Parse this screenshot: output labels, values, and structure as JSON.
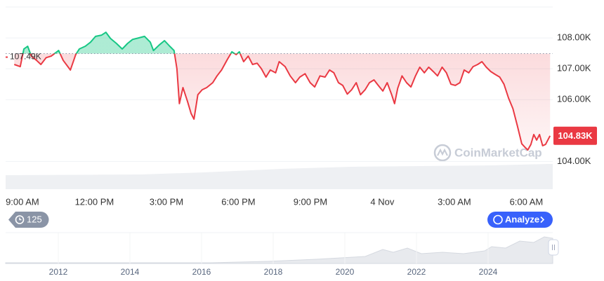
{
  "chart_data": {
    "type": "line",
    "x": [
      8.66,
      8.91,
      9.06,
      9.22,
      9.37,
      9.59,
      9.77,
      9.99,
      10.2,
      10.51,
      10.7,
      11.0,
      11.22,
      11.37,
      11.62,
      11.84,
      12.05,
      12.3,
      12.48,
      12.67,
      12.92,
      13.16,
      13.38,
      13.59,
      13.84,
      14.09,
      14.33,
      14.46,
      14.7,
      14.92,
      15.14,
      15.32,
      15.44,
      15.54,
      15.69,
      15.88,
      16.03,
      16.15,
      16.31,
      16.49,
      16.68,
      16.93,
      17.11,
      17.3,
      17.54,
      17.73,
      17.91,
      18.04,
      18.22,
      18.41,
      18.59,
      18.78,
      18.96,
      19.15,
      19.33,
      19.55,
      19.7,
      19.95,
      20.16,
      20.38,
      20.56,
      20.78,
      20.99,
      21.18,
      21.4,
      21.61,
      21.8,
      21.98,
      22.17,
      22.35,
      22.54,
      22.72,
      22.91,
      23.09,
      23.28,
      23.46,
      23.65,
      23.83,
      24.02,
      24.2,
      24.39,
      24.51,
      24.64,
      24.82,
      25.01,
      25.19,
      25.38,
      25.56,
      25.75,
      25.93,
      26.12,
      26.3,
      26.49,
      26.67,
      26.86,
      27.04,
      27.23,
      27.41,
      27.6,
      27.78,
      27.97,
      28.15,
      28.33,
      28.52,
      28.7,
      28.89,
      29.07,
      29.26,
      29.44,
      29.63,
      29.81,
      29.94,
      30.06,
      30.19,
      30.31,
      30.43,
      30.55,
      30.68,
      30.8,
      30.99
    ],
    "series": [
      {
        "up_color": "#16c784",
        "down_color": "#ea3943",
        "values": [
          107.14,
          107.07,
          107.64,
          107.73,
          107.41,
          107.27,
          107.14,
          107.36,
          107.41,
          107.59,
          107.27,
          106.96,
          107.46,
          107.64,
          107.73,
          107.86,
          108.05,
          108.09,
          108.18,
          107.98,
          107.82,
          107.64,
          107.82,
          107.95,
          108.0,
          108.05,
          107.86,
          107.59,
          107.77,
          107.91,
          107.73,
          107.59,
          107.0,
          105.87,
          106.39,
          105.94,
          105.55,
          105.37,
          106.16,
          106.32,
          106.39,
          106.55,
          106.77,
          106.96,
          107.3,
          107.55,
          107.46,
          107.55,
          107.23,
          107.41,
          107.14,
          107.18,
          107.0,
          106.73,
          106.96,
          106.87,
          107.23,
          107.07,
          106.77,
          106.55,
          106.73,
          106.84,
          106.55,
          106.41,
          106.77,
          106.73,
          106.96,
          106.87,
          106.55,
          106.46,
          106.18,
          106.32,
          106.55,
          106.16,
          106.32,
          106.55,
          106.64,
          106.46,
          106.28,
          106.55,
          106.16,
          105.87,
          106.37,
          106.77,
          106.55,
          106.41,
          106.77,
          107.05,
          106.87,
          107.05,
          106.91,
          106.77,
          107.05,
          106.87,
          106.5,
          106.46,
          106.55,
          106.96,
          106.87,
          107.07,
          107.14,
          107.23,
          107.05,
          106.91,
          106.82,
          106.73,
          106.5,
          106.05,
          105.71,
          105.14,
          104.57,
          104.46,
          104.37,
          104.55,
          104.87,
          104.69,
          104.87,
          104.51,
          104.55,
          104.83
        ]
      }
    ],
    "baseline": {
      "value": 107.49,
      "label": "107.49K"
    },
    "current": {
      "value": 104.83,
      "label": "104.83K"
    },
    "xlim": [
      8.3,
      31.1
    ],
    "xticks": [
      {
        "value": 9,
        "label": "9:00 AM"
      },
      {
        "value": 12,
        "label": "12:00 PM"
      },
      {
        "value": 15,
        "label": "3:00 PM"
      },
      {
        "value": 18,
        "label": "6:00 PM"
      },
      {
        "value": 21,
        "label": "9:00 PM"
      },
      {
        "value": 24,
        "label": "4 Nov"
      },
      {
        "value": 27,
        "label": "3:00 AM"
      },
      {
        "value": 30,
        "label": "6:00 AM"
      }
    ],
    "ylim": [
      103.1,
      109.0
    ],
    "yticks": [
      {
        "value": 104,
        "label": "104.00K"
      },
      {
        "value": 106,
        "label": "106.00K"
      },
      {
        "value": 107,
        "label": "107.00K"
      },
      {
        "value": 108,
        "label": "108.00K"
      }
    ],
    "grid": true
  },
  "ui": {
    "watermark": "CoinMarketCap",
    "history_badge": "125",
    "analyze_button": "Analyze"
  },
  "navigator": {
    "years": [
      "2012",
      "2014",
      "2016",
      "2018",
      "2020",
      "2022",
      "2024"
    ]
  }
}
